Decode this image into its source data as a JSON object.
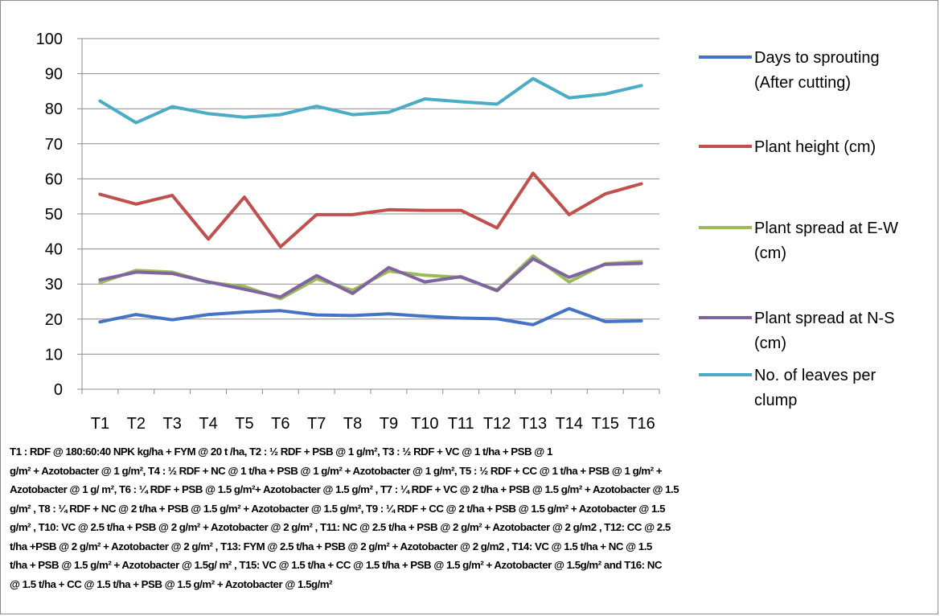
{
  "chart_data": {
    "type": "line",
    "categories": [
      "T1",
      "T2",
      "T3",
      "T4",
      "T5",
      "T6",
      "T7",
      "T8",
      "T9",
      "T10",
      "T11",
      "T12",
      "T13",
      "T14",
      "T15",
      "T16"
    ],
    "ylim": [
      0,
      100
    ],
    "yticks": [
      0,
      10,
      20,
      30,
      40,
      50,
      60,
      70,
      80,
      90,
      100
    ],
    "grid": true,
    "legend_position": "right",
    "series": [
      {
        "name": "Days to sprouting (After cutting)",
        "legend_lines": [
          "Days to sprouting",
          "(After cutting)"
        ],
        "color": "#4472c4",
        "values": [
          19.2,
          21.3,
          19.8,
          21.3,
          22.0,
          22.4,
          21.2,
          21.0,
          21.5,
          20.8,
          20.3,
          20.1,
          18.4,
          23.0,
          19.3,
          19.5
        ]
      },
      {
        "name": "Plant height (cm)",
        "legend_lines": [
          "Plant height (cm)"
        ],
        "color": "#c0504d",
        "values": [
          55.6,
          52.8,
          55.3,
          42.8,
          54.8,
          40.6,
          49.8,
          49.8,
          51.2,
          51.0,
          51.0,
          46.0,
          61.6,
          49.8,
          55.7,
          58.6
        ]
      },
      {
        "name": "Plant spread at E-W (cm)",
        "legend_lines": [
          "Plant spread at E-W",
          "(cm)"
        ],
        "color": "#9bbb59",
        "values": [
          30.4,
          33.9,
          33.4,
          30.5,
          29.3,
          25.8,
          31.5,
          28.2,
          33.7,
          32.5,
          31.9,
          28.3,
          38.0,
          30.6,
          35.8,
          36.4
        ]
      },
      {
        "name": "Plant spread at N-S (cm)",
        "legend_lines": [
          "Plant spread at N-S",
          "(cm)"
        ],
        "color": "#8064a2",
        "values": [
          31.2,
          33.4,
          33.0,
          30.6,
          28.5,
          26.3,
          32.4,
          27.3,
          34.7,
          30.6,
          32.1,
          28.1,
          37.2,
          31.9,
          35.6,
          35.9
        ]
      },
      {
        "name": "No. of leaves per clump",
        "legend_lines": [
          "No. of leaves per",
          "clump"
        ],
        "color": "#4bacc6",
        "values": [
          82.2,
          76.0,
          80.6,
          78.6,
          77.6,
          78.3,
          80.7,
          78.3,
          79.0,
          82.8,
          82.0,
          81.3,
          88.6,
          83.1,
          84.2,
          86.6
        ]
      }
    ]
  },
  "footnote": [
    "T1 : RDF @ 180:60:40 NPK kg/ha + FYM @ 20 t /ha, T2 : ½ RDF + PSB @ 1 g/m², T3 : ½ RDF + VC @ 1 t/ha + PSB @ 1",
    "g/m² + Azotobacter @ 1 g/m², T4 : ½ RDF + NC @ 1 t/ha + PSB @ 1 g/m² + Azotobacter @ 1 g/m², T5 : ½ RDF + CC @ 1 t/ha + PSB @ 1 g/m² +",
    "Azotobacter @ 1 g/ m², T6 : ¼ RDF + PSB @ 1.5 g/m²+ Azotobacter @ 1.5 g/m² , T7 : ¼ RDF + VC @ 2 t/ha + PSB @ 1.5 g/m² + Azotobacter @ 1.5",
    "g/m² , T8 : ¼ RDF + NC @ 2 t/ha + PSB @ 1.5 g/m² + Azotobacter @ 1.5 g/m², T9 : ¼ RDF + CC @ 2 t/ha + PSB @ 1.5 g/m² + Azotobacter @ 1.5",
    "g/m² , T10: VC @ 2.5 t/ha + PSB @ 2 g/m² + Azotobacter @ 2 g/m² , T11: NC @ 2.5 t/ha + PSB @ 2 g/m² + Azotobacter @ 2 g/m2 , T12: CC @ 2.5",
    "t/ha +PSB @ 2 g/m² + Azotobacter @ 2 g/m² , T13: FYM @ 2.5 t/ha + PSB @ 2 g/m² + Azotobacter @ 2 g/m2 , T14: VC @ 1.5 t/ha + NC @ 1.5",
    "t/ha + PSB @ 1.5 g/m² + Azotobacter @ 1.5g/ m² , T15: VC @ 1.5 t/ha + CC @ 1.5 t/ha + PSB @ 1.5 g/m² + Azotobacter @ 1.5g/m² and T16: NC",
    "@ 1.5 t/ha + CC @ 1.5 t/ha + PSB @ 1.5 g/m² + Azotobacter @ 1.5g/m²"
  ]
}
